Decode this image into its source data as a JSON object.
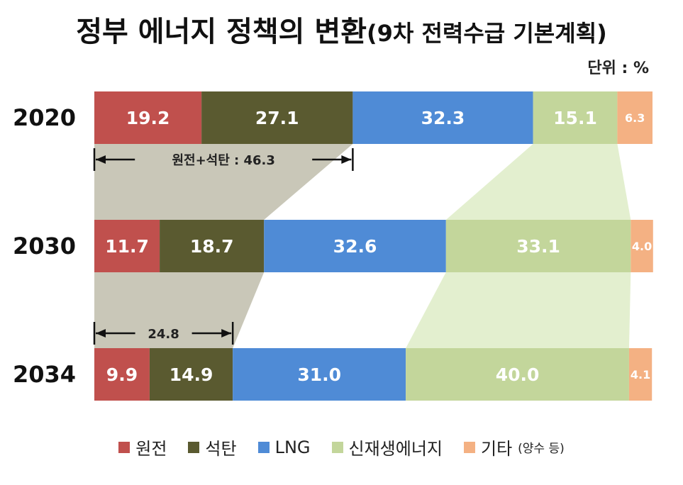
{
  "title": {
    "main": "정부 에너지 정책의 변환",
    "sub": "(9차 전력수급 기본계획)"
  },
  "unit_label": "단위 : %",
  "chart_data": {
    "type": "bar",
    "orientation": "horizontal-stacked-100",
    "categories": [
      "2020",
      "2030",
      "2034"
    ],
    "series": [
      {
        "name": "원전",
        "color": "#c0504d",
        "values": [
          19.2,
          11.7,
          9.9
        ]
      },
      {
        "name": "석탄",
        "color": "#5a5a30",
        "values": [
          27.1,
          18.7,
          14.9
        ]
      },
      {
        "name": "LNG",
        "color": "#4f8bd6",
        "values": [
          32.3,
          32.6,
          31.0
        ]
      },
      {
        "name": "신재생에너지",
        "color": "#c3d69b",
        "values": [
          15.1,
          33.1,
          40.0
        ]
      },
      {
        "name": "기타",
        "color": "#f4b183",
        "values": [
          6.3,
          4.0,
          4.1
        ]
      }
    ],
    "data_labels": [
      [
        "19.2",
        "27.1",
        "32.3",
        "15.1",
        "6.3"
      ],
      [
        "11.7",
        "18.7",
        "32.6",
        "33.1",
        "4.0"
      ],
      [
        "9.9",
        "14.9",
        "31.0",
        "40.0",
        "4.1"
      ]
    ],
    "annotations": [
      {
        "text": "원전+석탄 : 46.3",
        "category": "2020"
      },
      {
        "text": "24.8",
        "category": "2034"
      }
    ],
    "legend_position": "bottom",
    "grid": false
  },
  "legend": {
    "items": [
      {
        "label": "원전",
        "color": "#c0504d"
      },
      {
        "label": "석탄",
        "color": "#5a5a30"
      },
      {
        "label": "LNG",
        "color": "#4f8bd6"
      },
      {
        "label": "신재생에너지",
        "color": "#c3d69b"
      },
      {
        "label": "기타",
        "color": "#f4b183",
        "note": "(양수 등)"
      }
    ]
  }
}
